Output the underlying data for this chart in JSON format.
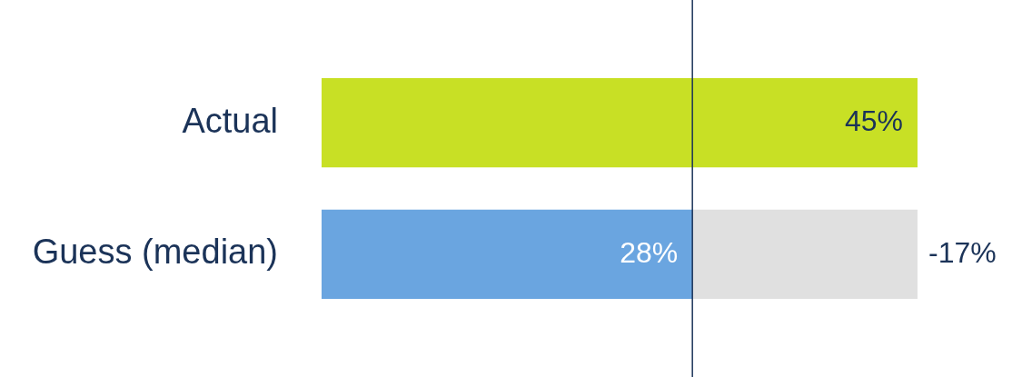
{
  "chart_data": {
    "type": "bar",
    "orientation": "horizontal",
    "stacked": true,
    "categories": [
      "Actual",
      "Guess (median)"
    ],
    "series": [
      {
        "colors": [
          "#c8e025",
          "#6aa5e0"
        ],
        "values": [
          45,
          28
        ],
        "value_labels": [
          "45%",
          "28%"
        ]
      },
      {
        "color": "#e0e0e0",
        "values": [
          null,
          17
        ]
      }
    ],
    "xlim": [
      0,
      45
    ],
    "tick_labels": "y",
    "grid": false,
    "legend": false,
    "annotations": [
      {
        "text": "-17%",
        "x": 45,
        "y": "Guess (median)"
      }
    ],
    "ref_lines": [
      {
        "axis": "x",
        "value": 28,
        "color": "#1b3358"
      }
    ]
  }
}
